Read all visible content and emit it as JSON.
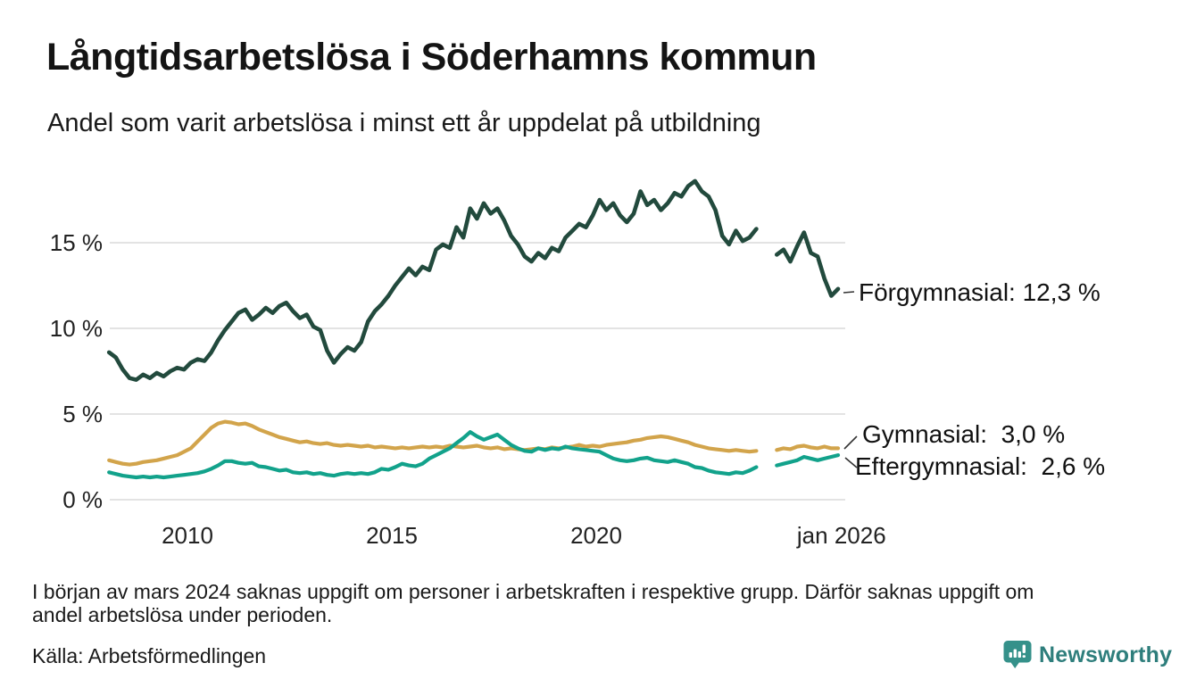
{
  "header": {
    "title": "Långtidsarbetslösa i Söderhamns kommun",
    "subtitle": "Andel som varit arbetslösa i minst ett år uppdelat på utbildning"
  },
  "chart_data": {
    "type": "line",
    "title": "Långtidsarbetslösa i Söderhamns kommun",
    "subtitle": "Andel som varit arbetslösa i minst ett år uppdelat på utbildning",
    "unit": "%",
    "grid": true,
    "x_start": 2008.0833,
    "x_step": 0.166667,
    "x_range": [
      2008.0833,
      2026.3
    ],
    "y_range": [
      0,
      19.5
    ],
    "x_ticks": [
      {
        "label": "2010",
        "year": 2010
      },
      {
        "label": "2015",
        "year": 2015
      },
      {
        "label": "2020",
        "year": 2020
      },
      {
        "label": "jan 2026",
        "year": 2026
      }
    ],
    "y_ticks": [
      {
        "label": "0 %",
        "value": 0
      },
      {
        "label": "5 %",
        "value": 5
      },
      {
        "label": "10 %",
        "value": 10
      },
      {
        "label": "15 %",
        "value": 15
      }
    ],
    "data_gap": "mars 2024 (värden saknas)",
    "series": [
      {
        "name": "Förgymnasial",
        "color": "#224a3d",
        "last_value_label": "12,3 %",
        "last_value": 12.3,
        "values": [
          8.6,
          8.3,
          7.6,
          7.1,
          7.0,
          7.3,
          7.1,
          7.4,
          7.2,
          7.5,
          7.7,
          7.6,
          8.0,
          8.2,
          8.1,
          8.6,
          9.3,
          9.9,
          10.4,
          10.9,
          11.1,
          10.5,
          10.8,
          11.2,
          10.9,
          11.3,
          11.5,
          11.0,
          10.6,
          10.8,
          10.1,
          9.9,
          8.7,
          8.0,
          8.5,
          8.9,
          8.7,
          9.2,
          10.4,
          11.0,
          11.4,
          11.9,
          12.5,
          13.0,
          13.5,
          13.1,
          13.6,
          13.4,
          14.6,
          14.9,
          14.7,
          15.9,
          15.3,
          17.0,
          16.4,
          17.3,
          16.7,
          17.0,
          16.3,
          15.4,
          14.9,
          14.2,
          13.9,
          14.4,
          14.1,
          14.7,
          14.5,
          15.3,
          15.7,
          16.1,
          15.9,
          16.6,
          17.5,
          16.9,
          17.3,
          16.6,
          16.2,
          16.7,
          18.0,
          17.2,
          17.5,
          16.9,
          17.3,
          17.9,
          17.7,
          18.3,
          18.6,
          18.0,
          17.7,
          16.9,
          15.4,
          14.9,
          15.7,
          15.1,
          15.3,
          15.8,
          null,
          null,
          14.3,
          14.6,
          13.9,
          14.8,
          15.6,
          14.4,
          14.2,
          12.9,
          11.9,
          12.3
        ]
      },
      {
        "name": "Gymnasial",
        "color": "#d2a44b",
        "last_value_label": "3,0 %",
        "last_value": 3.0,
        "values": [
          2.3,
          2.2,
          2.1,
          2.05,
          2.1,
          2.2,
          2.25,
          2.3,
          2.4,
          2.5,
          2.6,
          2.8,
          3.0,
          3.4,
          3.8,
          4.2,
          4.45,
          4.55,
          4.5,
          4.4,
          4.45,
          4.3,
          4.1,
          3.95,
          3.8,
          3.65,
          3.55,
          3.45,
          3.35,
          3.4,
          3.3,
          3.25,
          3.3,
          3.2,
          3.15,
          3.2,
          3.15,
          3.1,
          3.15,
          3.05,
          3.1,
          3.05,
          3.0,
          3.05,
          3.0,
          3.05,
          3.1,
          3.05,
          3.1,
          3.05,
          3.15,
          3.1,
          3.05,
          3.1,
          3.15,
          3.05,
          3.0,
          3.05,
          2.95,
          3.0,
          2.95,
          2.9,
          2.95,
          3.0,
          2.95,
          3.05,
          3.0,
          3.05,
          3.1,
          3.2,
          3.1,
          3.15,
          3.1,
          3.2,
          3.25,
          3.3,
          3.35,
          3.45,
          3.5,
          3.6,
          3.65,
          3.7,
          3.65,
          3.55,
          3.45,
          3.35,
          3.2,
          3.1,
          3.0,
          2.95,
          2.9,
          2.85,
          2.9,
          2.85,
          2.8,
          2.85,
          null,
          null,
          2.9,
          3.0,
          2.95,
          3.1,
          3.15,
          3.05,
          3.0,
          3.1,
          3.0,
          3.0
        ]
      },
      {
        "name": "Eftergymnasial",
        "color": "#12a28b",
        "last_value_label": "2,6 %",
        "last_value": 2.6,
        "values": [
          1.6,
          1.5,
          1.4,
          1.35,
          1.3,
          1.35,
          1.3,
          1.35,
          1.3,
          1.35,
          1.4,
          1.45,
          1.5,
          1.55,
          1.65,
          1.8,
          2.0,
          2.25,
          2.25,
          2.15,
          2.1,
          2.15,
          1.95,
          1.9,
          1.8,
          1.7,
          1.75,
          1.6,
          1.55,
          1.6,
          1.5,
          1.55,
          1.45,
          1.4,
          1.5,
          1.55,
          1.5,
          1.55,
          1.5,
          1.6,
          1.8,
          1.75,
          1.9,
          2.1,
          2.0,
          1.95,
          2.1,
          2.4,
          2.6,
          2.8,
          3.0,
          3.3,
          3.6,
          3.95,
          3.7,
          3.5,
          3.65,
          3.8,
          3.5,
          3.2,
          3.0,
          2.85,
          2.8,
          3.0,
          2.9,
          3.0,
          2.95,
          3.1,
          3.0,
          2.95,
          2.9,
          2.85,
          2.8,
          2.6,
          2.4,
          2.3,
          2.25,
          2.3,
          2.4,
          2.45,
          2.3,
          2.25,
          2.2,
          2.3,
          2.2,
          2.1,
          1.9,
          1.85,
          1.7,
          1.6,
          1.55,
          1.5,
          1.6,
          1.55,
          1.7,
          1.9,
          null,
          null,
          2.0,
          2.1,
          2.2,
          2.3,
          2.5,
          2.4,
          2.3,
          2.4,
          2.5,
          2.6
        ]
      }
    ],
    "legend_position": "right-end-labels"
  },
  "annotations": {
    "forgymnasial_label": "Förgymnasial: 12,3 %",
    "gymnasial_label": "Gymnasial:  3,0 %",
    "eftergymnasial_label": "Eftergymnasial:  2,6 %"
  },
  "footer": {
    "note_line1": "I början av mars 2024 saknas uppgift om personer i arbetskraften i respektive grupp. Därför saknas uppgift om",
    "note_line2": "andel arbetslösa under perioden.",
    "source": "Källa: Arbetsförmedlingen",
    "brand": "Newsworthy"
  },
  "colors": {
    "forgymnasial": "#224a3d",
    "gymnasial": "#d2a44b",
    "eftergymnasial": "#12a28b",
    "gridline": "#e3e3e3",
    "brand_teal": "#2e7e7c",
    "brand_icon": "#35918a",
    "text": "#1a1a1a"
  }
}
